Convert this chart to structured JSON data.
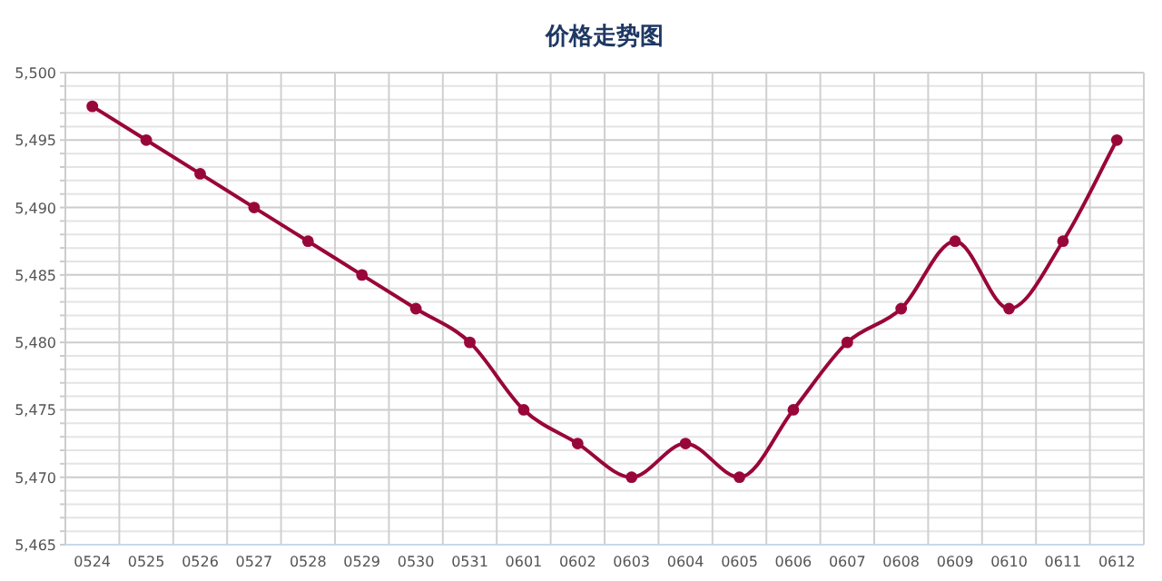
{
  "chart_data": {
    "type": "line",
    "title": "价格走势图",
    "categories": [
      "0524",
      "0525",
      "0526",
      "0527",
      "0528",
      "0529",
      "0530",
      "0531",
      "0601",
      "0602",
      "0603",
      "0604",
      "0605",
      "0606",
      "0607",
      "0608",
      "0609",
      "0610",
      "0611",
      "0612"
    ],
    "series": [
      {
        "color": "#99063a",
        "values": [
          5497.5,
          5495,
          5492.5,
          5490,
          5487.5,
          5485,
          5482.5,
          5480,
          5475,
          5472.5,
          5470,
          5472.5,
          5470,
          5475,
          5480,
          5482.5,
          5487.5,
          5482.5,
          5487.5,
          5495
        ]
      }
    ],
    "ylim": [
      5465,
      5500
    ],
    "yticks": [
      {
        "value": 5465,
        "label": "5,465"
      },
      {
        "value": 5466,
        "label": null
      },
      {
        "value": 5467,
        "label": null
      },
      {
        "value": 5468,
        "label": null
      },
      {
        "value": 5469,
        "label": null
      },
      {
        "value": 5470,
        "label": "5,470"
      },
      {
        "value": 5471,
        "label": null
      },
      {
        "value": 5472,
        "label": null
      },
      {
        "value": 5473,
        "label": null
      },
      {
        "value": 5474,
        "label": null
      },
      {
        "value": 5475,
        "label": "5,475"
      },
      {
        "value": 5476,
        "label": null
      },
      {
        "value": 5477,
        "label": null
      },
      {
        "value": 5478,
        "label": null
      },
      {
        "value": 5479,
        "label": null
      },
      {
        "value": 5480,
        "label": "5,480"
      },
      {
        "value": 5481,
        "label": null
      },
      {
        "value": 5482,
        "label": null
      },
      {
        "value": 5483,
        "label": null
      },
      {
        "value": 5484,
        "label": null
      },
      {
        "value": 5485,
        "label": "5,485"
      },
      {
        "value": 5486,
        "label": null
      },
      {
        "value": 5487,
        "label": null
      },
      {
        "value": 5488,
        "label": null
      },
      {
        "value": 5489,
        "label": null
      },
      {
        "value": 5490,
        "label": "5,490"
      },
      {
        "value": 5491,
        "label": null
      },
      {
        "value": 5492,
        "label": null
      },
      {
        "value": 5493,
        "label": null
      },
      {
        "value": 5494,
        "label": null
      },
      {
        "value": 5495,
        "label": "5,495"
      },
      {
        "value": 5496,
        "label": null
      },
      {
        "value": 5497,
        "label": null
      },
      {
        "value": 5498,
        "label": null
      },
      {
        "value": 5499,
        "label": null
      },
      {
        "value": 5500,
        "label": "5,500"
      }
    ],
    "grid": true,
    "marker": "circle",
    "line_style": "solid"
  }
}
